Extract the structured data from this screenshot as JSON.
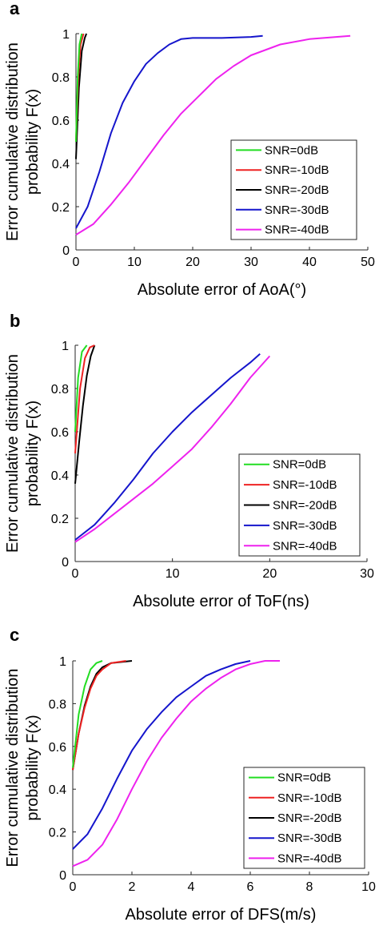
{
  "colors": {
    "SNR=0dB": "#22dd22",
    "SNR=-10dB": "#ee2222",
    "SNR=-20dB": "#000000",
    "SNR=-30dB": "#1515cc",
    "SNR=-40dB": "#ee22ee"
  },
  "chart_data": [
    {
      "panel": "a",
      "type": "line",
      "xlabel": "Absolute error of AoA(°)",
      "ylabel": [
        "Error cumulative distribution",
        "probability F(x)"
      ],
      "xlim": [
        0,
        50
      ],
      "ylim": [
        0,
        1
      ],
      "xticks": [
        "0",
        "10",
        "20",
        "30",
        "40",
        "50"
      ],
      "yticks": [
        "0",
        "0.2",
        "0.4",
        "0.6",
        "0.8",
        "1"
      ],
      "legend_position": "center-right",
      "series": [
        {
          "name": "SNR=0dB",
          "points": [
            [
              0,
              0.5
            ],
            [
              0.3,
              0.8
            ],
            [
              0.6,
              0.95
            ],
            [
              1,
              1
            ]
          ]
        },
        {
          "name": "SNR=-10dB",
          "points": [
            [
              0,
              0.5
            ],
            [
              0.4,
              0.8
            ],
            [
              0.8,
              0.95
            ],
            [
              1.3,
              1
            ]
          ]
        },
        {
          "name": "SNR=-20dB",
          "points": [
            [
              0,
              0.42
            ],
            [
              0.5,
              0.75
            ],
            [
              1,
              0.92
            ],
            [
              1.5,
              0.98
            ],
            [
              1.8,
              1
            ]
          ]
        },
        {
          "name": "SNR=-30dB",
          "points": [
            [
              0,
              0.1
            ],
            [
              2,
              0.2
            ],
            [
              4,
              0.36
            ],
            [
              6,
              0.54
            ],
            [
              8,
              0.68
            ],
            [
              10,
              0.78
            ],
            [
              12,
              0.86
            ],
            [
              14,
              0.91
            ],
            [
              16,
              0.95
            ],
            [
              18,
              0.975
            ],
            [
              20,
              0.98
            ],
            [
              25,
              0.98
            ],
            [
              30,
              0.985
            ],
            [
              32,
              0.99
            ]
          ]
        },
        {
          "name": "SNR=-40dB",
          "points": [
            [
              0,
              0.07
            ],
            [
              3,
              0.12
            ],
            [
              6,
              0.21
            ],
            [
              9,
              0.31
            ],
            [
              12,
              0.42
            ],
            [
              15,
              0.53
            ],
            [
              18,
              0.63
            ],
            [
              21,
              0.71
            ],
            [
              24,
              0.79
            ],
            [
              27,
              0.85
            ],
            [
              30,
              0.9
            ],
            [
              35,
              0.95
            ],
            [
              40,
              0.975
            ],
            [
              47,
              0.99
            ]
          ]
        }
      ]
    },
    {
      "panel": "b",
      "type": "line",
      "xlabel": "Absolute error of ToF(ns)",
      "ylabel": [
        "Error cumulative distribution",
        "probability F(x)"
      ],
      "xlim": [
        0,
        30
      ],
      "ylim": [
        0,
        1
      ],
      "xticks": [
        "0",
        "10",
        "20",
        "30"
      ],
      "yticks": [
        "0",
        "0.2",
        "0.4",
        "0.6",
        "0.8",
        "1"
      ],
      "legend_position": "bottom-right",
      "series": [
        {
          "name": "SNR=0dB",
          "points": [
            [
              0,
              0.6
            ],
            [
              0.3,
              0.85
            ],
            [
              0.7,
              0.97
            ],
            [
              1.2,
              1
            ]
          ]
        },
        {
          "name": "SNR=-10dB",
          "points": [
            [
              0,
              0.5
            ],
            [
              0.5,
              0.8
            ],
            [
              1,
              0.94
            ],
            [
              1.5,
              0.99
            ],
            [
              2,
              1
            ]
          ]
        },
        {
          "name": "SNR=-20dB",
          "points": [
            [
              0,
              0.36
            ],
            [
              0.4,
              0.55
            ],
            [
              0.8,
              0.72
            ],
            [
              1.2,
              0.86
            ],
            [
              1.6,
              0.95
            ],
            [
              2,
              1
            ]
          ]
        },
        {
          "name": "SNR=-30dB",
          "points": [
            [
              0,
              0.1
            ],
            [
              2,
              0.17
            ],
            [
              4,
              0.27
            ],
            [
              6,
              0.38
            ],
            [
              8,
              0.5
            ],
            [
              10,
              0.6
            ],
            [
              12,
              0.69
            ],
            [
              14,
              0.77
            ],
            [
              16,
              0.85
            ],
            [
              18,
              0.92
            ],
            [
              19,
              0.96
            ]
          ]
        },
        {
          "name": "SNR=-40dB",
          "points": [
            [
              0,
              0.09
            ],
            [
              2,
              0.15
            ],
            [
              4,
              0.22
            ],
            [
              6,
              0.29
            ],
            [
              8,
              0.36
            ],
            [
              10,
              0.44
            ],
            [
              12,
              0.52
            ],
            [
              14,
              0.62
            ],
            [
              16,
              0.73
            ],
            [
              18,
              0.85
            ],
            [
              20,
              0.95
            ]
          ]
        }
      ]
    },
    {
      "panel": "c",
      "type": "line",
      "xlabel": "Absolute error of DFS(m/s)",
      "ylabel": [
        "Error cumulative distribution",
        "probability F(x)"
      ],
      "xlim": [
        0,
        10
      ],
      "ylim": [
        0,
        1
      ],
      "xticks": [
        "0",
        "2",
        "4",
        "6",
        "8",
        "10"
      ],
      "yticks": [
        "0",
        "0.2",
        "0.4",
        "0.6",
        "0.8",
        "1"
      ],
      "legend_position": "bottom-right",
      "series": [
        {
          "name": "SNR=0dB",
          "points": [
            [
              0,
              0.5
            ],
            [
              0.2,
              0.75
            ],
            [
              0.4,
              0.88
            ],
            [
              0.6,
              0.96
            ],
            [
              0.8,
              0.99
            ],
            [
              1,
              1
            ]
          ]
        },
        {
          "name": "SNR=-10dB",
          "points": [
            [
              0,
              0.49
            ],
            [
              0.2,
              0.66
            ],
            [
              0.4,
              0.78
            ],
            [
              0.6,
              0.87
            ],
            [
              0.8,
              0.93
            ],
            [
              1,
              0.96
            ],
            [
              1.3,
              0.99
            ],
            [
              1.8,
              1
            ]
          ]
        },
        {
          "name": "SNR=-20dB",
          "points": [
            [
              0,
              0.49
            ],
            [
              0.2,
              0.66
            ],
            [
              0.4,
              0.79
            ],
            [
              0.6,
              0.88
            ],
            [
              0.8,
              0.94
            ],
            [
              1,
              0.97
            ],
            [
              1.3,
              0.99
            ],
            [
              2,
              1
            ]
          ]
        },
        {
          "name": "SNR=-30dB",
          "points": [
            [
              0,
              0.12
            ],
            [
              0.5,
              0.19
            ],
            [
              1,
              0.31
            ],
            [
              1.5,
              0.45
            ],
            [
              2,
              0.58
            ],
            [
              2.5,
              0.68
            ],
            [
              3,
              0.76
            ],
            [
              3.5,
              0.83
            ],
            [
              4,
              0.88
            ],
            [
              4.5,
              0.93
            ],
            [
              5,
              0.96
            ],
            [
              5.5,
              0.985
            ],
            [
              6,
              1
            ]
          ]
        },
        {
          "name": "SNR=-40dB",
          "points": [
            [
              0,
              0.04
            ],
            [
              0.5,
              0.07
            ],
            [
              1,
              0.14
            ],
            [
              1.5,
              0.26
            ],
            [
              2,
              0.4
            ],
            [
              2.5,
              0.53
            ],
            [
              3,
              0.64
            ],
            [
              3.5,
              0.73
            ],
            [
              4,
              0.81
            ],
            [
              4.5,
              0.87
            ],
            [
              5,
              0.92
            ],
            [
              5.5,
              0.96
            ],
            [
              6,
              0.985
            ],
            [
              6.5,
              1
            ],
            [
              7,
              1
            ]
          ]
        }
      ]
    }
  ]
}
